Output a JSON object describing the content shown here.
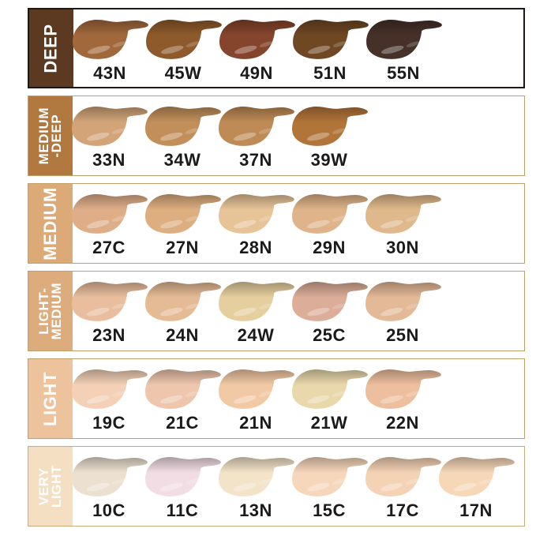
{
  "page": {
    "background": "#ffffff"
  },
  "rows": [
    {
      "category": "DEEP",
      "label_lines": [
        "DEEP"
      ],
      "panel_color": "#5C3A22",
      "panel_text_color": "#ffffff",
      "border_color": "#1d1813",
      "swatches": [
        {
          "code": "43N",
          "color": "#A1683C"
        },
        {
          "code": "45W",
          "color": "#8E5A2B"
        },
        {
          "code": "49N",
          "color": "#85452C"
        },
        {
          "code": "51N",
          "color": "#6F4723"
        },
        {
          "code": "55N",
          "color": "#463129"
        }
      ]
    },
    {
      "category": "MEDIUM-DEEP",
      "label_lines": [
        "MEDIUM",
        "-DEEP"
      ],
      "panel_color": "#B1793F",
      "panel_text_color": "#ffffff",
      "border_color": "#bf9e6a",
      "swatches": [
        {
          "code": "33N",
          "color": "#D2A478"
        },
        {
          "code": "34W",
          "color": "#C28F5B"
        },
        {
          "code": "37N",
          "color": "#BE8A55"
        },
        {
          "code": "39W",
          "color": "#B17439"
        }
      ]
    },
    {
      "category": "MEDIUM",
      "label_lines": [
        "MEDIUM"
      ],
      "panel_color": "#DCAA77",
      "panel_text_color": "#ffffff",
      "border_color": "#c1a06c",
      "swatches": [
        {
          "code": "27C",
          "color": "#DFAE89"
        },
        {
          "code": "27N",
          "color": "#DDAE7F"
        },
        {
          "code": "28N",
          "color": "#E7C398"
        },
        {
          "code": "29N",
          "color": "#E0B48A"
        },
        {
          "code": "30N",
          "color": "#DFB98B"
        }
      ]
    },
    {
      "category": "LIGHT-MEDIUM",
      "label_lines": [
        "LIGHT-",
        "MEDIUM"
      ],
      "panel_color": "#DDAC7C",
      "panel_text_color": "#ffffff",
      "border_color": "#c1a06c",
      "swatches": [
        {
          "code": "23N",
          "color": "#E9BE9E"
        },
        {
          "code": "24N",
          "color": "#E5BB95"
        },
        {
          "code": "24W",
          "color": "#E6CF9E"
        },
        {
          "code": "25C",
          "color": "#DCAD98"
        },
        {
          "code": "25N",
          "color": "#E3B997"
        }
      ]
    },
    {
      "category": "LIGHT",
      "label_lines": [
        "LIGHT"
      ],
      "panel_color": "#EDC39E",
      "panel_text_color": "#ffffff",
      "border_color": "#c1a06c",
      "swatches": [
        {
          "code": "19C",
          "color": "#F3D0B6"
        },
        {
          "code": "21C",
          "color": "#EEC6AE"
        },
        {
          "code": "21N",
          "color": "#F2C9A5"
        },
        {
          "code": "21W",
          "color": "#E9D8AC"
        },
        {
          "code": "22N",
          "color": "#EEBF9E"
        }
      ]
    },
    {
      "category": "VERY LIGHT",
      "label_lines": [
        "VERY",
        "LIGHT"
      ],
      "panel_color": "#F5DFC3",
      "panel_text_color": "#ffffff",
      "border_color": "#c9ab79",
      "swatches": [
        {
          "code": "10C",
          "color": "#ECE1D1"
        },
        {
          "code": "11C",
          "color": "#F2DDE5"
        },
        {
          "code": "13N",
          "color": "#F3E3C9"
        },
        {
          "code": "15C",
          "color": "#F7D7BB"
        },
        {
          "code": "17C",
          "color": "#F4D2B5"
        },
        {
          "code": "17N",
          "color": "#F6D7B8"
        }
      ]
    }
  ]
}
